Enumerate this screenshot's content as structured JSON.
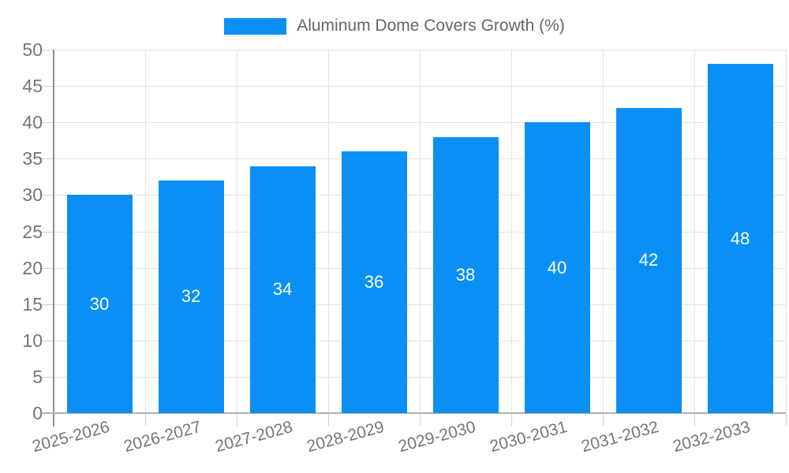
{
  "legend": {
    "label": "Aluminum Dome Covers Growth (%)",
    "swatch_color": "#0a90f5"
  },
  "chart_data": {
    "type": "bar",
    "title": "",
    "categories": [
      "2025-2026",
      "2026-2027",
      "2027-2028",
      "2028-2029",
      "2029-2030",
      "2030-2031",
      "2031-2032",
      "2032-2033"
    ],
    "series": [
      {
        "name": "Aluminum Dome Covers Growth (%)",
        "values": [
          30,
          32,
          34,
          36,
          38,
          40,
          42,
          48
        ]
      }
    ],
    "value_labels": [
      "30",
      "32",
      "34",
      "36",
      "38",
      "40",
      "42",
      "48"
    ],
    "xlabel": "",
    "ylabel": "",
    "ylim": [
      0,
      50
    ],
    "yticks": [
      0,
      5,
      10,
      15,
      20,
      25,
      30,
      35,
      40,
      45,
      50
    ],
    "grid": true,
    "legend_position": "top",
    "colors": {
      "bar": "#0a90f5",
      "grid": "#e4e4e4",
      "axis_line_y": "#8f8f8f",
      "axis_line_x": "#b2b2b2",
      "tick": "#cfcfcf",
      "axis_text": "#757575",
      "legend_text": "#666666",
      "value_text": "#ffffff"
    }
  }
}
